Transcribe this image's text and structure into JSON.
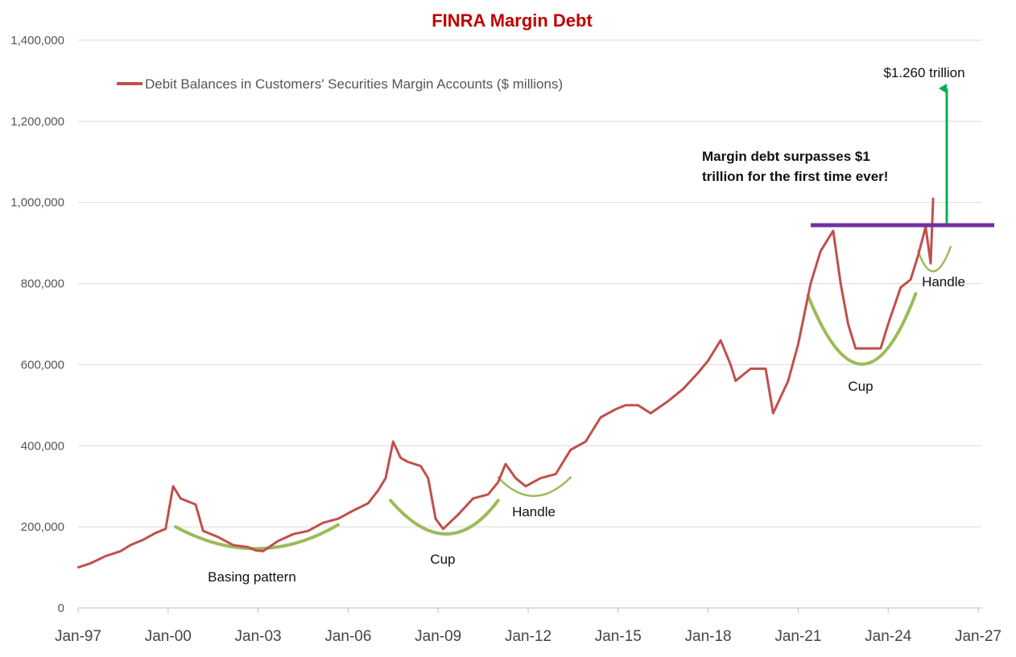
{
  "chart_data": {
    "type": "line",
    "title": "FINRA Margin Debt",
    "xlabel": "",
    "ylabel": "",
    "ylim": [
      0,
      1400000
    ],
    "yticks": [
      0,
      200000,
      400000,
      600000,
      800000,
      1000000,
      1200000,
      1400000
    ],
    "ytick_labels": [
      "0",
      "200,000",
      "400,000",
      "600,000",
      "800,000",
      "1,000,000",
      "1,200,000",
      "1,400,000"
    ],
    "xlim": [
      "1997-01",
      "2027-01"
    ],
    "xtick_labels": [
      "Jan-97",
      "Jan-00",
      "Jan-03",
      "Jan-06",
      "Jan-09",
      "Jan-12",
      "Jan-15",
      "Jan-18",
      "Jan-21",
      "Jan-24",
      "Jan-27"
    ],
    "grid": "horizontal",
    "legend_position": "top-left",
    "series": [
      {
        "name": "Debit Balances in Customers' Securities Margin Accounts ($ millions)",
        "color": "#c0504d",
        "x": [
          "1997-01",
          "1997-06",
          "1997-12",
          "1998-06",
          "1998-10",
          "1999-03",
          "1999-08",
          "1999-12",
          "2000-03",
          "2000-06",
          "2000-12",
          "2001-03",
          "2001-09",
          "2002-03",
          "2002-09",
          "2002-12",
          "2003-03",
          "2003-09",
          "2004-03",
          "2004-09",
          "2005-03",
          "2005-09",
          "2006-03",
          "2006-09",
          "2007-01",
          "2007-04",
          "2007-07",
          "2007-10",
          "2008-01",
          "2008-06",
          "2008-09",
          "2008-12",
          "2009-03",
          "2009-09",
          "2010-03",
          "2010-09",
          "2011-01",
          "2011-04",
          "2011-08",
          "2011-12",
          "2012-06",
          "2012-12",
          "2013-06",
          "2013-12",
          "2014-06",
          "2014-12",
          "2015-04",
          "2015-09",
          "2016-02",
          "2016-09",
          "2017-03",
          "2017-09",
          "2018-01",
          "2018-06",
          "2018-10",
          "2018-12",
          "2019-06",
          "2019-12",
          "2020-03",
          "2020-09",
          "2021-01",
          "2021-06",
          "2021-10",
          "2022-03",
          "2022-06",
          "2022-09",
          "2022-12",
          "2023-03",
          "2023-06",
          "2023-10",
          "2024-01",
          "2024-06",
          "2024-10",
          "2025-01",
          "2025-04",
          "2025-06",
          "2025-07"
        ],
        "values": [
          100000,
          110000,
          128000,
          140000,
          155000,
          168000,
          185000,
          195000,
          300000,
          270000,
          255000,
          190000,
          175000,
          155000,
          150000,
          142000,
          140000,
          165000,
          182000,
          190000,
          210000,
          220000,
          240000,
          258000,
          290000,
          320000,
          410000,
          370000,
          360000,
          350000,
          320000,
          220000,
          195000,
          230000,
          270000,
          280000,
          310000,
          355000,
          320000,
          300000,
          320000,
          330000,
          390000,
          410000,
          470000,
          490000,
          500000,
          500000,
          480000,
          510000,
          540000,
          580000,
          610000,
          660000,
          600000,
          560000,
          590000,
          590000,
          480000,
          560000,
          650000,
          800000,
          880000,
          930000,
          800000,
          700000,
          640000,
          640000,
          640000,
          640000,
          700000,
          790000,
          810000,
          870000,
          940000,
          850000,
          1010000
        ]
      }
    ],
    "reference_line": {
      "y": 945000,
      "color": "#7030a0"
    },
    "annotations": [
      {
        "text": "$1.260 trillion",
        "type": "arrow",
        "color": "#00b050"
      },
      {
        "text_line1": "Margin debt surpasses $1",
        "text_line2": "trillion for the first time ever!",
        "bold": true
      },
      {
        "text": "Basing pattern",
        "type": "arc",
        "color": "#9bbb59"
      },
      {
        "text": "Cup",
        "type": "arc",
        "color": "#9bbb59"
      },
      {
        "text": "Handle",
        "type": "arc",
        "color": "#9bbb59"
      },
      {
        "text": "Cup",
        "type": "arc",
        "color": "#9bbb59"
      },
      {
        "text": "Handle",
        "type": "arc",
        "color": "#9bbb59"
      }
    ],
    "colors": {
      "title": "#c00000",
      "line": "#c0504d",
      "grid": "#d9d9d9",
      "arc": "#9bbb59",
      "reference": "#7030a0",
      "arrow": "#00b050"
    }
  }
}
